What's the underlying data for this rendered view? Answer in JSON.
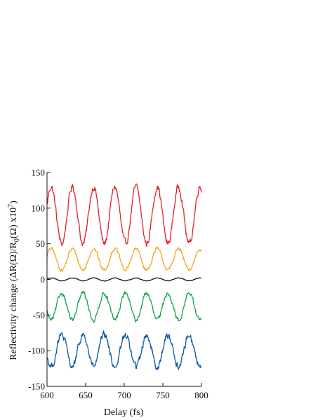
{
  "chart_data": {
    "type": "line",
    "xlabel": "Delay (fs)",
    "ylabel": {
      "main": "Reflectivity change (ΔR(Ω)/R",
      "sub": "0",
      "mid": "(Ω) x10",
      "sup": "7",
      "end": ")"
    },
    "xlim": [
      600,
      800
    ],
    "ylim": [
      -150,
      150
    ],
    "xticks": [
      600,
      650,
      700,
      750,
      800
    ],
    "yticks": [
      150,
      100,
      50,
      0,
      -50,
      -100,
      -150
    ],
    "grid": false,
    "legend": "none",
    "period_fs": 27.5,
    "series": [
      {
        "color": "#e3202f",
        "x_range": [
          600,
          800
        ],
        "offset": 90,
        "amplitude": 40,
        "phase_deg": 20,
        "noise": 4
      },
      {
        "color": "#f0a81c",
        "x_range": [
          600,
          800
        ],
        "offset": 28,
        "amplitude": 15,
        "phase_deg": 20,
        "noise": 2
      },
      {
        "color": "#111111",
        "x_range": [
          600,
          800
        ],
        "offset": 0,
        "amplitude": 2,
        "phase_deg": 20,
        "noise": 0.3
      },
      {
        "color": "#13a04d",
        "x_range": [
          600,
          800
        ],
        "offset": -38,
        "amplitude": 19,
        "phase_deg": 200,
        "noise": 2.5
      },
      {
        "color": "#0b56a5",
        "x_range": [
          600,
          800
        ],
        "offset": -100,
        "amplitude": 22,
        "phase_deg": 200,
        "noise": 4
      }
    ]
  }
}
